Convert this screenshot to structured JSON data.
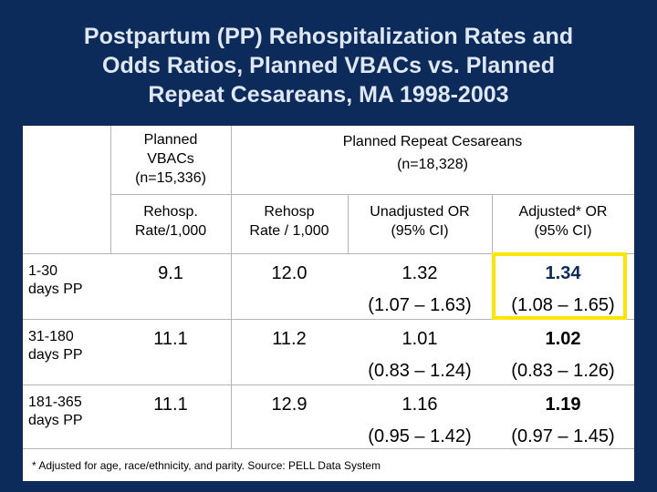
{
  "title": {
    "line1": "Postpartum (PP) Rehospitalization Rates and",
    "line2": "Odds Ratios, Planned VBACs vs. Planned",
    "line3": "Repeat Cesareans, MA 1998-2003"
  },
  "headers": {
    "vbac_group": [
      "Planned",
      "VBACs",
      "(n=15,336)"
    ],
    "cesarean_group": [
      "Planned Repeat Cesareans",
      "(n=18,328)"
    ],
    "col1": [
      "Rehosp.",
      "Rate/1,000"
    ],
    "col2": [
      "Rehosp",
      "Rate / 1,000"
    ],
    "col3": [
      "Unadjusted OR",
      "(95% CI)"
    ],
    "col4": [
      "Adjusted* OR",
      "(95% CI)"
    ]
  },
  "rows": [
    {
      "label": [
        "1-30",
        "days PP"
      ],
      "vbac_rate": "9.1",
      "cs_rate": "12.0",
      "unadj_or": "1.32",
      "unadj_ci": "(1.07 – 1.63)",
      "adj_or": "1.34",
      "adj_ci": "(1.08 – 1.65)"
    },
    {
      "label": [
        "31-180",
        "days PP"
      ],
      "vbac_rate": "11.1",
      "cs_rate": "11.2",
      "unadj_or": "1.01",
      "unadj_ci": "(0.83 – 1.24)",
      "adj_or": "1.02",
      "adj_ci": "(0.83 – 1.26)"
    },
    {
      "label": [
        "181-365",
        "days PP"
      ],
      "vbac_rate": "11.1",
      "cs_rate": "12.9",
      "unadj_or": "1.16",
      "unadj_ci": "(0.95 – 1.42)",
      "adj_or": "1.19",
      "adj_ci": "(0.97 – 1.45)"
    }
  ],
  "footnote": "* Adjusted for age, race/ethnicity, and parity.  Source: PELL Data System",
  "colors": {
    "background": "#0c2a5a",
    "title_text": "#dfe7f2",
    "highlight_border": "#ffe600"
  }
}
